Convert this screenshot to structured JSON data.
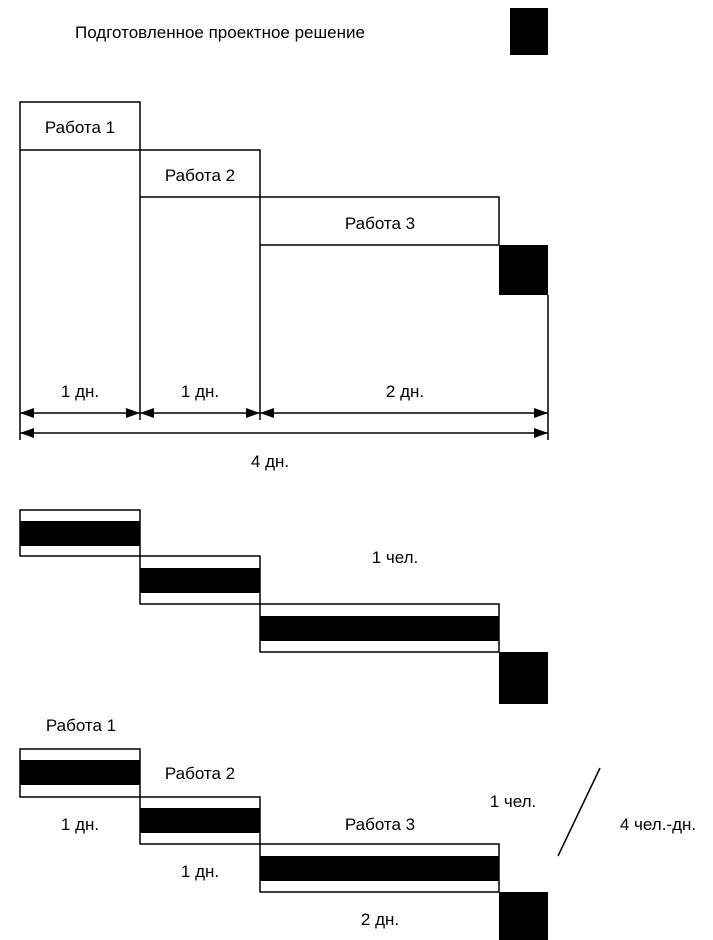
{
  "legend": {
    "label": "Подготовленное проектное решение"
  },
  "diagram1": {
    "tasks": [
      "Работа 1",
      "Работа 2",
      "Работа 3"
    ],
    "durations": [
      "1 дн.",
      "1 дн.",
      "2 дн."
    ],
    "total": "4 дн."
  },
  "diagram2": {
    "workers": "1 чел."
  },
  "diagram3": {
    "task1": "Работа 1",
    "task2": "Работа 2",
    "task3": "Работа 3",
    "dur1": "1 дн.",
    "dur2": "1 дн.",
    "dur3": "2 дн.",
    "workers": "1 чел.",
    "effort": "4 чел.-дн."
  },
  "colors": {
    "line": "#000000",
    "fill": "#000000",
    "background": "#ffffff"
  }
}
